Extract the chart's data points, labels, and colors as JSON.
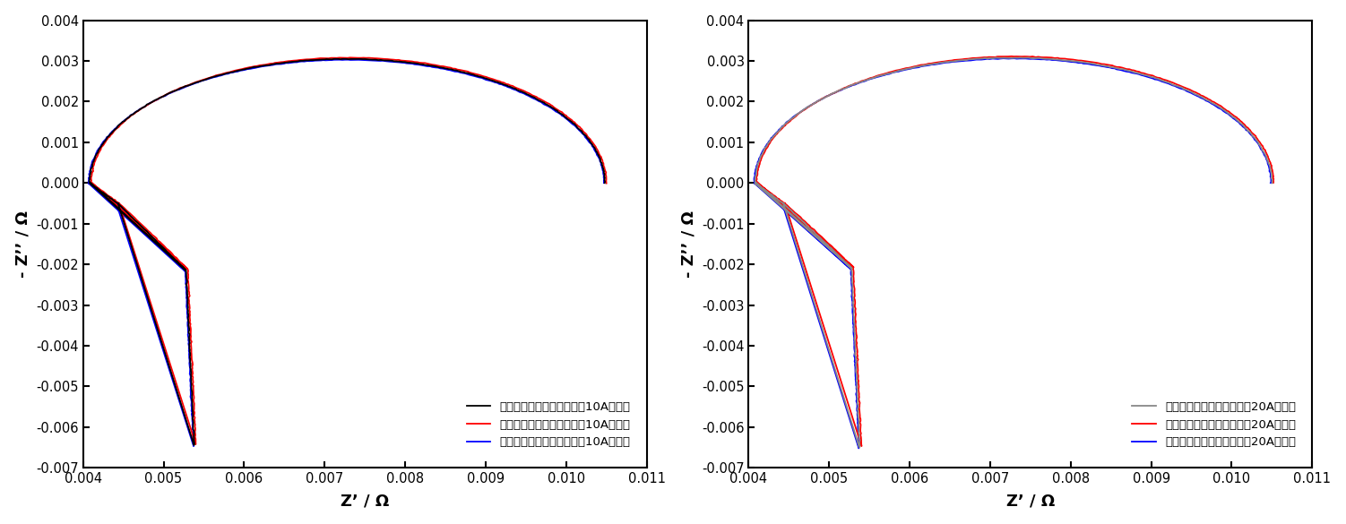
{
  "plot1": {
    "xlabel": "Z’ / Ω",
    "ylabel": "- Z’’ / Ω",
    "xlim": [
      0.004,
      0.011
    ],
    "ylim": [
      -0.007,
      0.004
    ],
    "xticks": [
      0.004,
      0.005,
      0.006,
      0.007,
      0.008,
      0.009,
      0.01,
      0.011
    ],
    "yticks": [
      -0.007,
      -0.006,
      -0.005,
      -0.004,
      -0.003,
      -0.002,
      -0.001,
      0.0,
      0.001,
      0.002,
      0.003,
      0.004
    ],
    "legend": [
      {
        "label": "直流电源并联电化学工作站10A第一次",
        "color": "#000000"
      },
      {
        "label": "直流电源并联电化学工作站10A第二次",
        "color": "#ff0000"
      },
      {
        "label": "直流电源并联电化学工作站10A第三次",
        "color": "#0000ff"
      }
    ]
  },
  "plot2": {
    "xlabel": "Z’ / Ω",
    "ylabel": "- Z’’ / Ω",
    "xlim": [
      0.004,
      0.011
    ],
    "ylim": [
      -0.007,
      0.004
    ],
    "xticks": [
      0.004,
      0.005,
      0.006,
      0.007,
      0.008,
      0.009,
      0.01,
      0.011
    ],
    "yticks": [
      -0.007,
      -0.006,
      -0.005,
      -0.004,
      -0.003,
      -0.002,
      -0.001,
      0.0,
      0.001,
      0.002,
      0.003,
      0.004
    ],
    "legend": [
      {
        "label": "直流电源并联电化学工作站20A第一次",
        "color": "#888888"
      },
      {
        "label": "直流电源并联电化学工作站20A第二次",
        "color": "#ff0000"
      },
      {
        "label": "直流电源并联电化学工作站20A第三次",
        "color": "#0000ff"
      }
    ]
  },
  "line_width": 1.3
}
